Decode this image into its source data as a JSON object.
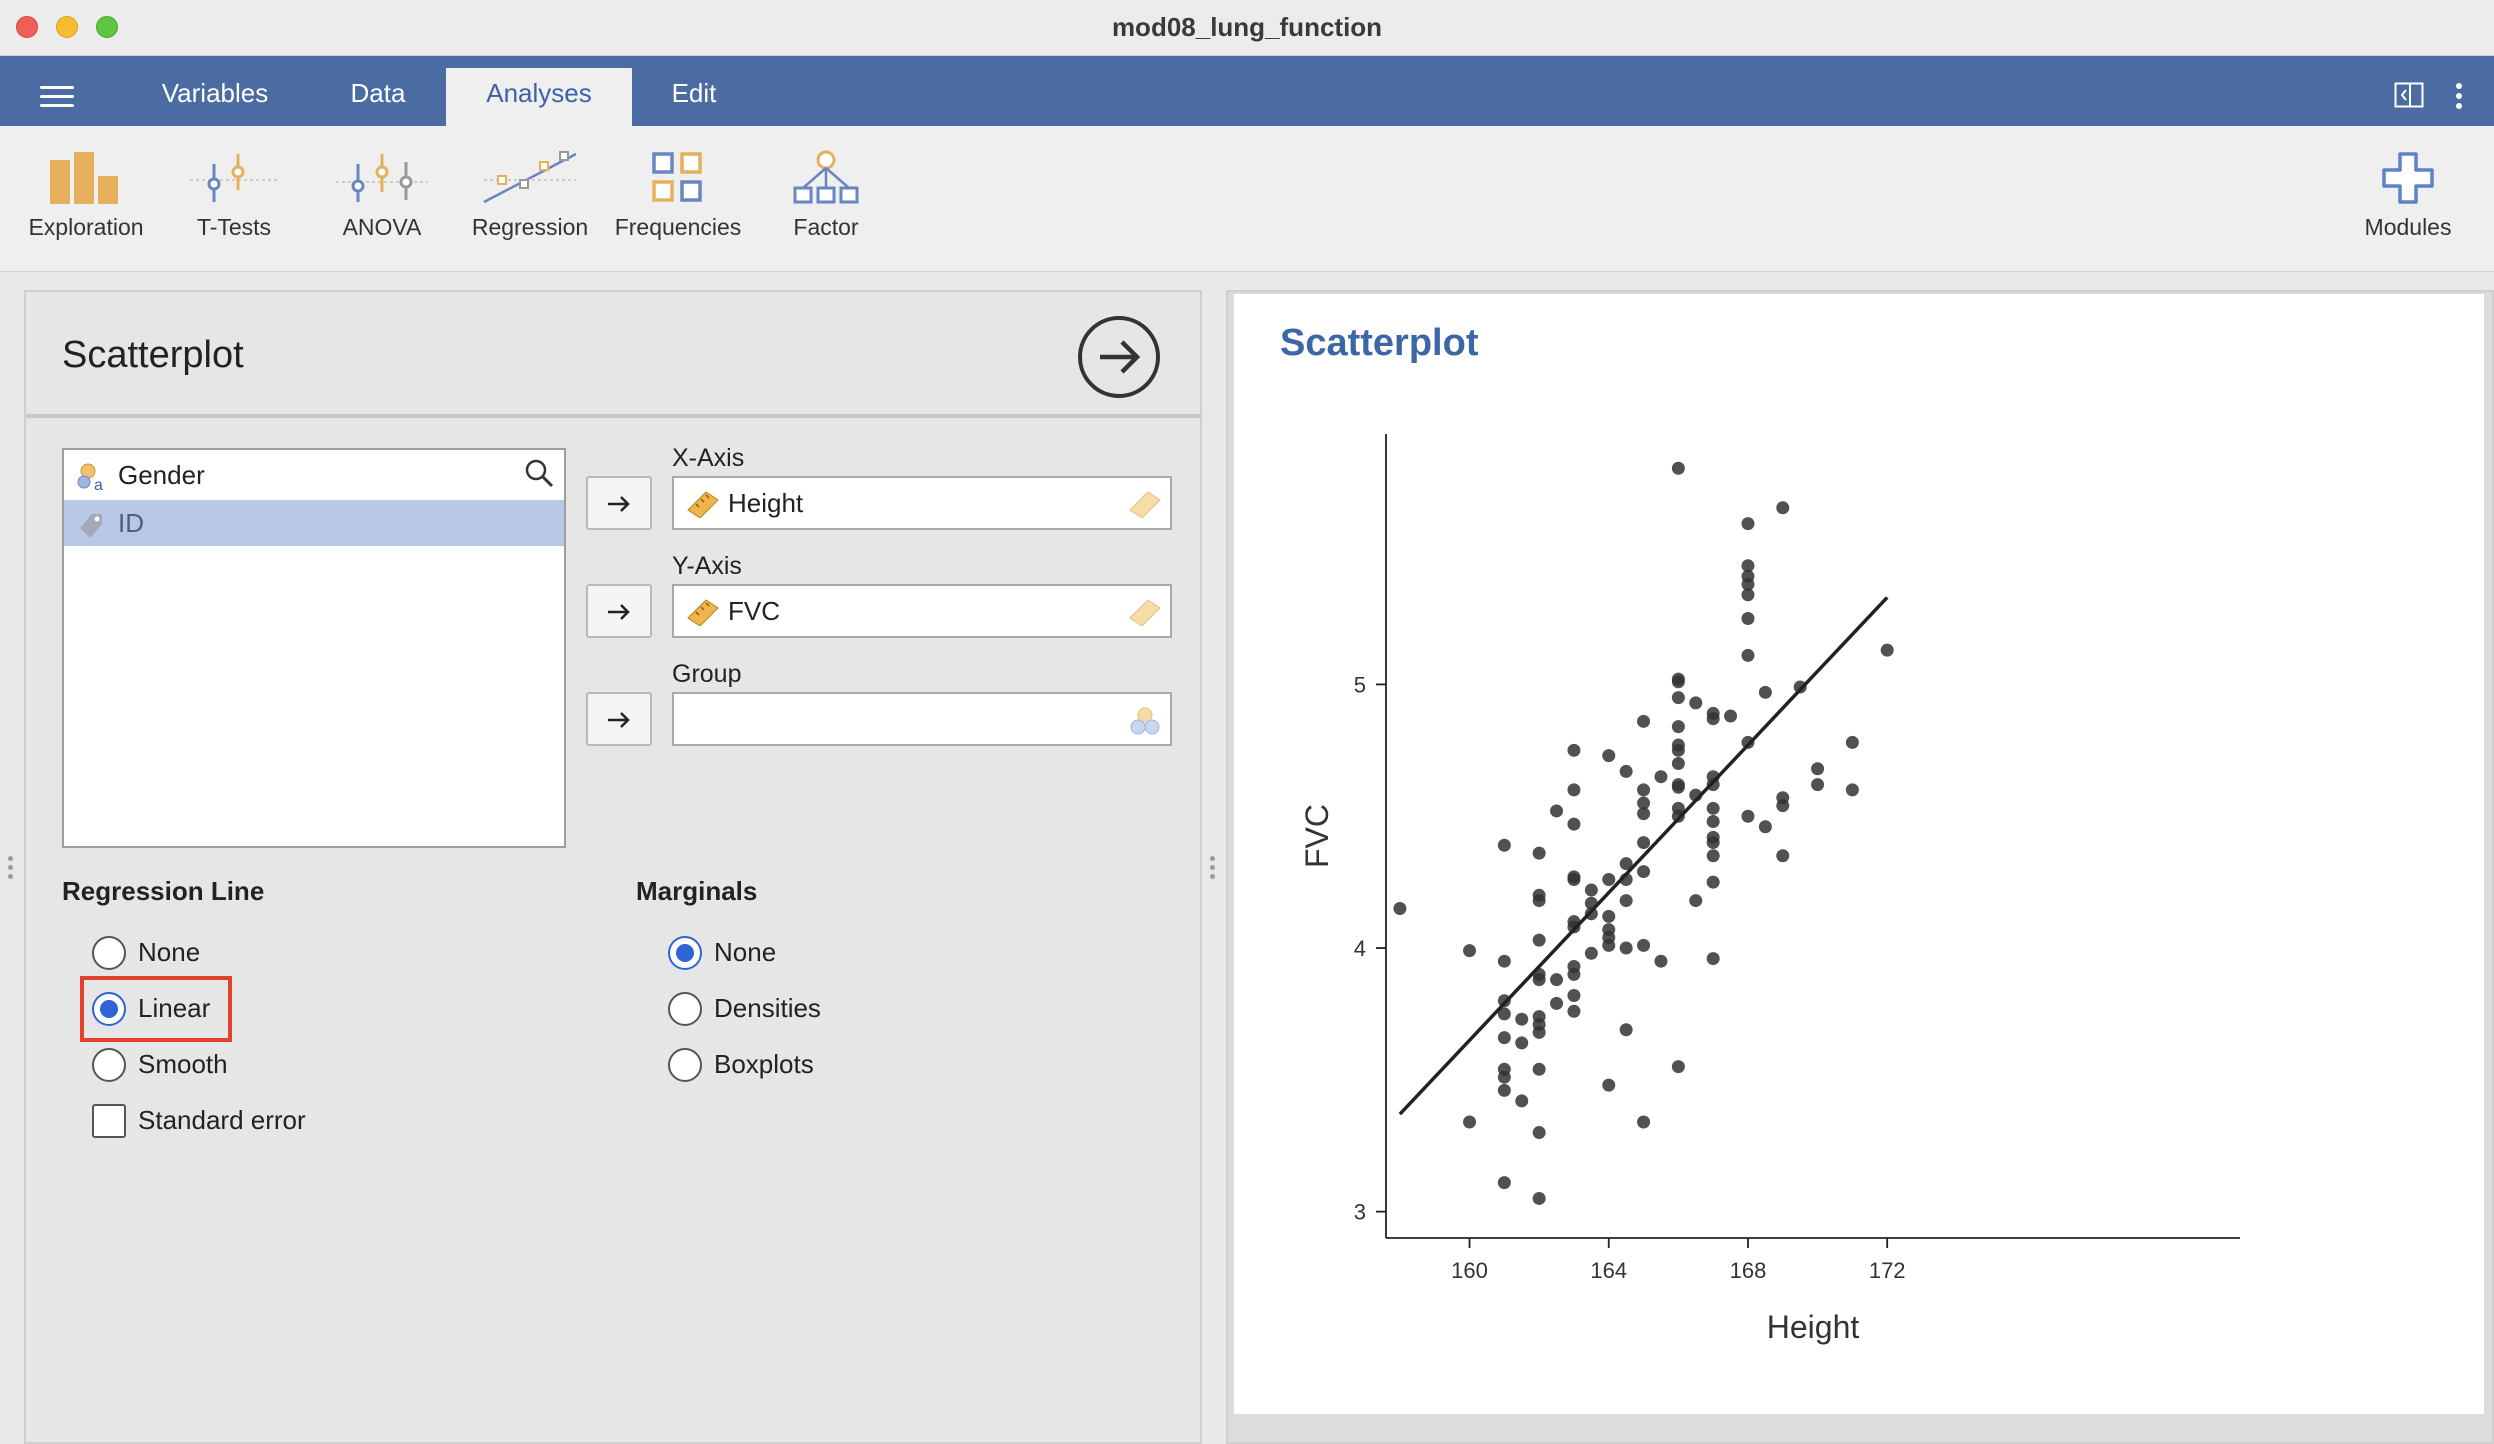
{
  "window": {
    "title": "mod08_lung_function"
  },
  "menubar": {
    "tabs": [
      {
        "label": "Variables"
      },
      {
        "label": "Data"
      },
      {
        "label": "Analyses"
      },
      {
        "label": "Edit"
      }
    ],
    "active_tab": "Analyses"
  },
  "ribbon": {
    "buttons": [
      {
        "label": "Exploration",
        "icon": "exploration-icon"
      },
      {
        "label": "T-Tests",
        "icon": "t-tests-icon"
      },
      {
        "label": "ANOVA",
        "icon": "anova-icon"
      },
      {
        "label": "Regression",
        "icon": "regression-icon"
      },
      {
        "label": "Frequencies",
        "icon": "frequencies-icon"
      },
      {
        "label": "Factor",
        "icon": "factor-icon"
      }
    ],
    "modules_label": "Modules"
  },
  "options": {
    "title": "Scatterplot",
    "variables": [
      {
        "name": "Gender",
        "icon": "nominal-icon",
        "selected": false
      },
      {
        "name": "ID",
        "icon": "id-icon",
        "selected": true
      }
    ],
    "x_axis": {
      "label": "X-Axis",
      "value": "Height"
    },
    "y_axis": {
      "label": "Y-Axis",
      "value": "FVC"
    },
    "group": {
      "label": "Group",
      "value": ""
    },
    "regression_line": {
      "title": "Regression Line",
      "options": [
        "None",
        "Linear",
        "Smooth"
      ],
      "selected": "Linear",
      "standard_error_label": "Standard error",
      "standard_error_checked": false
    },
    "marginals": {
      "title": "Marginals",
      "options": [
        "None",
        "Densities",
        "Boxplots"
      ],
      "selected": "None"
    }
  },
  "results": {
    "title": "Scatterplot"
  },
  "colors": {
    "accent": "#4a6ca3",
    "title_blue": "#3d66a4",
    "highlight": "#e2412d",
    "radio": "#2f63d7",
    "point": "#333333"
  },
  "chart_data": {
    "type": "scatter",
    "xlabel": "Height",
    "ylabel": "FVC",
    "xticks": [
      160,
      164,
      168,
      172
    ],
    "yticks": [
      3,
      4,
      5
    ],
    "xlim": [
      157.6,
      173.0
    ],
    "ylim": [
      2.9,
      5.95
    ],
    "regression_line": {
      "x": [
        158,
        172
      ],
      "y": [
        3.37,
        5.33
      ]
    },
    "points": [
      [
        158,
        4.15
      ],
      [
        160,
        3.99
      ],
      [
        160,
        3.34
      ],
      [
        161,
        4.39
      ],
      [
        161,
        3.95
      ],
      [
        161,
        3.8
      ],
      [
        161,
        3.75
      ],
      [
        161,
        3.66
      ],
      [
        161,
        3.54
      ],
      [
        161,
        3.51
      ],
      [
        161,
        3.46
      ],
      [
        161,
        3.11
      ],
      [
        161.5,
        3.73
      ],
      [
        161.5,
        3.64
      ],
      [
        161.5,
        3.42
      ],
      [
        162,
        4.36
      ],
      [
        162,
        4.2
      ],
      [
        162,
        4.18
      ],
      [
        162,
        4.03
      ],
      [
        162,
        3.9
      ],
      [
        162,
        3.88
      ],
      [
        162,
        3.74
      ],
      [
        162,
        3.71
      ],
      [
        162,
        3.68
      ],
      [
        162,
        3.54
      ],
      [
        162,
        3.3
      ],
      [
        162,
        3.05
      ],
      [
        162.5,
        4.52
      ],
      [
        162.5,
        3.88
      ],
      [
        162.5,
        3.79
      ],
      [
        163,
        4.75
      ],
      [
        163,
        4.6
      ],
      [
        163,
        4.47
      ],
      [
        163,
        4.27
      ],
      [
        163,
        4.26
      ],
      [
        163,
        4.1
      ],
      [
        163,
        4.08
      ],
      [
        163,
        3.93
      ],
      [
        163,
        3.9
      ],
      [
        163,
        3.82
      ],
      [
        163,
        3.76
      ],
      [
        163.5,
        4.22
      ],
      [
        163.5,
        4.17
      ],
      [
        163.5,
        4.13
      ],
      [
        163.5,
        3.98
      ],
      [
        164,
        4.73
      ],
      [
        164,
        4.26
      ],
      [
        164,
        4.12
      ],
      [
        164,
        4.07
      ],
      [
        164,
        4.04
      ],
      [
        164,
        4.01
      ],
      [
        164,
        3.48
      ],
      [
        164.5,
        4.67
      ],
      [
        164.5,
        4.32
      ],
      [
        164.5,
        4.26
      ],
      [
        164.5,
        4.18
      ],
      [
        164.5,
        4.0
      ],
      [
        164.5,
        3.69
      ],
      [
        165,
        4.86
      ],
      [
        165,
        4.6
      ],
      [
        165,
        4.55
      ],
      [
        165,
        4.51
      ],
      [
        165,
        4.4
      ],
      [
        165,
        4.29
      ],
      [
        165,
        4.01
      ],
      [
        165,
        3.34
      ],
      [
        165.5,
        4.65
      ],
      [
        165.5,
        3.95
      ],
      [
        166,
        5.82
      ],
      [
        166,
        5.02
      ],
      [
        166,
        5.01
      ],
      [
        166,
        4.95
      ],
      [
        166,
        4.84
      ],
      [
        166,
        4.77
      ],
      [
        166,
        4.75
      ],
      [
        166,
        4.7
      ],
      [
        166,
        4.62
      ],
      [
        166,
        4.61
      ],
      [
        166,
        4.53
      ],
      [
        166,
        4.5
      ],
      [
        166,
        3.55
      ],
      [
        166.5,
        4.93
      ],
      [
        166.5,
        4.58
      ],
      [
        166.5,
        4.18
      ],
      [
        167,
        4.89
      ],
      [
        167,
        4.87
      ],
      [
        167,
        4.65
      ],
      [
        167,
        4.62
      ],
      [
        167,
        4.53
      ],
      [
        167,
        4.48
      ],
      [
        167,
        4.42
      ],
      [
        167,
        4.4
      ],
      [
        167,
        4.35
      ],
      [
        167,
        4.25
      ],
      [
        167,
        3.96
      ],
      [
        167.5,
        4.88
      ],
      [
        168,
        5.61
      ],
      [
        168,
        5.45
      ],
      [
        168,
        5.41
      ],
      [
        168,
        5.38
      ],
      [
        168,
        5.34
      ],
      [
        168,
        5.25
      ],
      [
        168,
        5.11
      ],
      [
        168,
        4.78
      ],
      [
        168,
        4.5
      ],
      [
        168.5,
        4.97
      ],
      [
        168.5,
        4.46
      ],
      [
        169,
        5.67
      ],
      [
        169,
        4.57
      ],
      [
        169,
        4.54
      ],
      [
        169,
        4.35
      ],
      [
        169.5,
        4.99
      ],
      [
        170,
        4.68
      ],
      [
        170,
        4.62
      ],
      [
        171,
        4.78
      ],
      [
        171,
        4.6
      ],
      [
        172,
        5.13
      ]
    ]
  }
}
